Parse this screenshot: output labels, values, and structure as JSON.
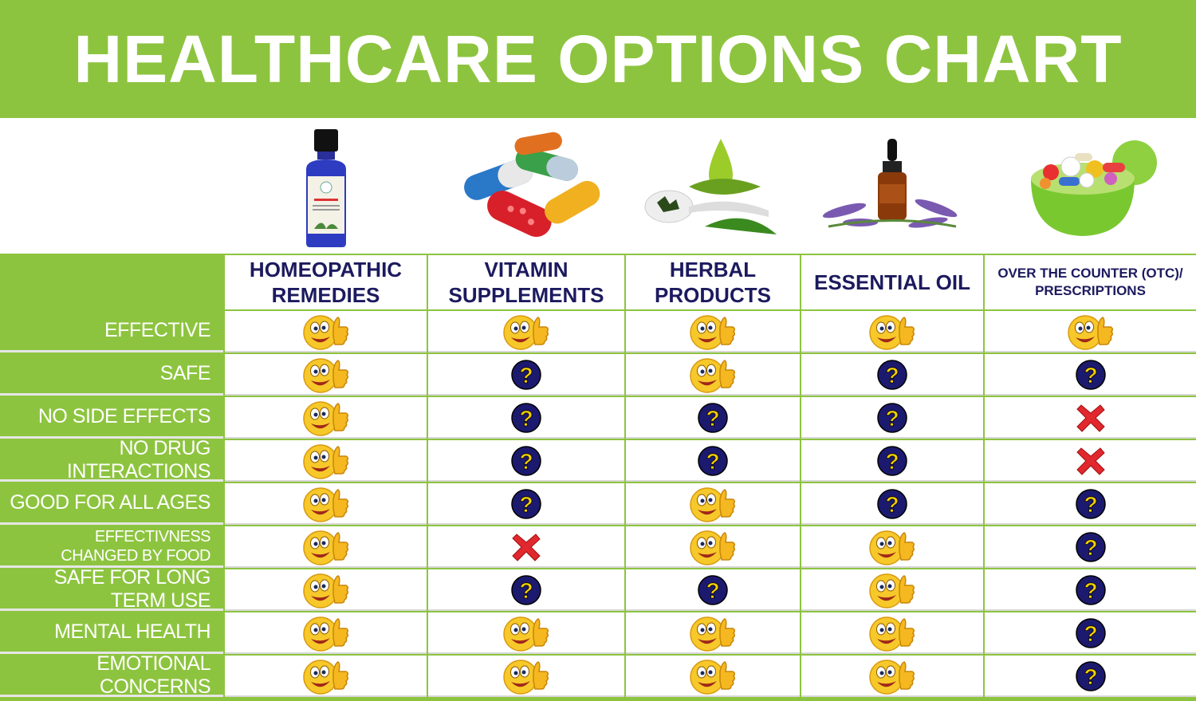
{
  "title": "HEALTHCARE OPTIONS CHART",
  "chart_data": {
    "type": "table",
    "columns": [
      {
        "label": [
          "HOMEOPATHIC",
          "REMEDIES"
        ],
        "image": "homeopathic-bottle"
      },
      {
        "label": [
          "VITAMIN",
          "SUPPLEMENTS"
        ],
        "image": "vitamin-capsules"
      },
      {
        "label": [
          "HERBAL",
          "PRODUCTS"
        ],
        "image": "herbal-leaves-drop"
      },
      {
        "label": [
          "ESSENTIAL OIL"
        ],
        "image": "essential-oil-lavender"
      },
      {
        "label": [
          "OVER THE COUNTER (OTC)/",
          "PRESCRIPTIONS"
        ],
        "image": "pill-bowl"
      }
    ],
    "rows": [
      {
        "label": [
          "EFFECTIVE"
        ],
        "values": [
          "yes",
          "yes",
          "yes",
          "yes",
          "yes"
        ]
      },
      {
        "label": [
          "SAFE"
        ],
        "values": [
          "yes",
          "unknown",
          "yes",
          "unknown",
          "unknown"
        ]
      },
      {
        "label": [
          "NO SIDE EFFECTS"
        ],
        "values": [
          "yes",
          "unknown",
          "unknown",
          "unknown",
          "no"
        ]
      },
      {
        "label": [
          "NO DRUG INTERACTIONS"
        ],
        "values": [
          "yes",
          "unknown",
          "unknown",
          "unknown",
          "no"
        ]
      },
      {
        "label": [
          "GOOD FOR ALL AGES"
        ],
        "values": [
          "yes",
          "unknown",
          "yes",
          "unknown",
          "unknown"
        ]
      },
      {
        "label": [
          "EFFECTIVNESS",
          "CHANGED BY FOOD"
        ],
        "values": [
          "yes",
          "no",
          "yes",
          "yes",
          "unknown"
        ]
      },
      {
        "label": [
          "SAFE FOR LONG TERM USE"
        ],
        "values": [
          "yes",
          "unknown",
          "unknown",
          "yes",
          "unknown"
        ]
      },
      {
        "label": [
          "MENTAL HEALTH"
        ],
        "values": [
          "yes",
          "yes",
          "yes",
          "yes",
          "unknown"
        ]
      },
      {
        "label": [
          "EMOTIONAL CONCERNS"
        ],
        "values": [
          "yes",
          "yes",
          "yes",
          "yes",
          "unknown"
        ]
      }
    ],
    "legend": {
      "yes": "smiley-thumbs-up-icon",
      "unknown": "question-mark-icon",
      "no": "red-x-icon"
    }
  },
  "colors": {
    "green": "#8dc43f",
    "header_text": "#1c1a5e",
    "question_bg": "#1c1a6e",
    "question_mark": "#f5d000",
    "x_red": "#e0282e",
    "smiley": "#f7c82a"
  }
}
